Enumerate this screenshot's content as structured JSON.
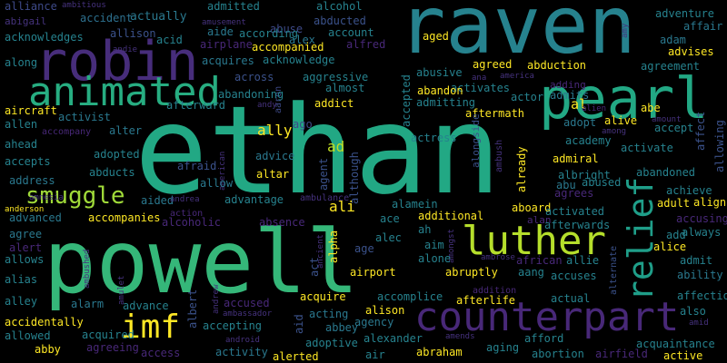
{
  "words": [
    {
      "text": "ethan",
      "color": "#22a884"
    },
    {
      "text": "powell",
      "color": "#35b779"
    },
    {
      "text": "raven",
      "color": "#26828e"
    },
    {
      "text": "robin",
      "color": "#472d7b"
    },
    {
      "text": "pearl",
      "color": "#22a884"
    },
    {
      "text": "animated",
      "color": "#27ad81"
    },
    {
      "text": "counterpart",
      "color": "#482878"
    },
    {
      "text": "luther",
      "color": "#b5de2b"
    },
    {
      "text": "relief",
      "color": "#1f9e89"
    },
    {
      "text": "imf",
      "color": "#fde725"
    },
    {
      "text": "smuggle",
      "color": "#a0da39"
    },
    {
      "text": "alliance",
      "color": "#3e4a89"
    },
    {
      "text": "ambitious",
      "color": "#46327e"
    },
    {
      "text": "accident",
      "color": "#2d708e"
    },
    {
      "text": "abigail",
      "color": "#46337e"
    },
    {
      "text": "admitted",
      "color": "#26828e"
    },
    {
      "text": "amusement",
      "color": "#46327e"
    },
    {
      "text": "alcohol",
      "color": "#26828e"
    },
    {
      "text": "abducted",
      "color": "#3b528b"
    },
    {
      "text": "abuse",
      "color": "#3e4a89"
    },
    {
      "text": "actually",
      "color": "#2a788e"
    },
    {
      "text": "acknowledges",
      "color": "#26828e"
    },
    {
      "text": "allison",
      "color": "#3b528b"
    },
    {
      "text": "andie",
      "color": "#46327e"
    },
    {
      "text": "acid",
      "color": "#26828e"
    },
    {
      "text": "aide",
      "color": "#2a788e"
    },
    {
      "text": "according",
      "color": "#26828e"
    },
    {
      "text": "alex",
      "color": "#2a788e"
    },
    {
      "text": "account",
      "color": "#26828e"
    },
    {
      "text": "alfred",
      "color": "#482878"
    },
    {
      "text": "airplane",
      "color": "#482878"
    },
    {
      "text": "accompanied",
      "color": "#fde725"
    },
    {
      "text": "aged",
      "color": "#fde725"
    },
    {
      "text": "amy",
      "color": "#46327e"
    },
    {
      "text": "adventure",
      "color": "#26828e"
    },
    {
      "text": "affair",
      "color": "#2a788e"
    },
    {
      "text": "adam",
      "color": "#2a788e"
    },
    {
      "text": "advises",
      "color": "#fde725"
    },
    {
      "text": "along",
      "color": "#26828e"
    },
    {
      "text": "acquires",
      "color": "#2a788e"
    },
    {
      "text": "acknowledge",
      "color": "#26828e"
    },
    {
      "text": "across",
      "color": "#3b528b"
    },
    {
      "text": "aggressive",
      "color": "#26828e"
    },
    {
      "text": "abusive",
      "color": "#26828e"
    },
    {
      "text": "agreed",
      "color": "#fde725"
    },
    {
      "text": "abduction",
      "color": "#fde725"
    },
    {
      "text": "agreement",
      "color": "#26828e"
    },
    {
      "text": "ana",
      "color": "#46327e"
    },
    {
      "text": "america",
      "color": "#46327e"
    },
    {
      "text": "activates",
      "color": "#26828e"
    },
    {
      "text": "adding",
      "color": "#482878"
    },
    {
      "text": "abandon",
      "color": "#fde725"
    },
    {
      "text": "actor",
      "color": "#26828e"
    },
    {
      "text": "admits",
      "color": "#2a788e"
    },
    {
      "text": "aaron",
      "color": "#3e4a89"
    },
    {
      "text": "almost",
      "color": "#26828e"
    },
    {
      "text": "abandoning",
      "color": "#26828e"
    },
    {
      "text": "accepted",
      "color": "#26828e"
    },
    {
      "text": "admitting",
      "color": "#26828e"
    },
    {
      "text": "aircraft",
      "color": "#fde725"
    },
    {
      "text": "activist",
      "color": "#2a788e"
    },
    {
      "text": "allen",
      "color": "#26828e"
    },
    {
      "text": "afterward",
      "color": "#26828e"
    },
    {
      "text": "alter",
      "color": "#2a788e"
    },
    {
      "text": "addict",
      "color": "#fde725"
    },
    {
      "text": "andy",
      "color": "#46327e"
    },
    {
      "text": "ago",
      "color": "#3e4a89"
    },
    {
      "text": "aftermath",
      "color": "#fde725"
    },
    {
      "text": "al",
      "color": "#fde725"
    },
    {
      "text": "alien",
      "color": "#482878"
    },
    {
      "text": "abe",
      "color": "#fde725"
    },
    {
      "text": "amount",
      "color": "#46327e"
    },
    {
      "text": "adopt",
      "color": "#2a788e"
    },
    {
      "text": "alive",
      "color": "#fde725"
    },
    {
      "text": "accept",
      "color": "#26828e"
    },
    {
      "text": "affect",
      "color": "#3b528b"
    },
    {
      "text": "allowing",
      "color": "#3b528b"
    },
    {
      "text": "accompany",
      "color": "#482878"
    },
    {
      "text": "ahead",
      "color": "#26828e"
    },
    {
      "text": "among",
      "color": "#46327e"
    },
    {
      "text": "academy",
      "color": "#26828e"
    },
    {
      "text": "activate",
      "color": "#26828e"
    },
    {
      "text": "ally",
      "color": "#fde725"
    },
    {
      "text": "actress",
      "color": "#26828e"
    },
    {
      "text": "alongside",
      "color": "#3b528b"
    },
    {
      "text": "ambush",
      "color": "#46327e"
    },
    {
      "text": "ad",
      "color": "#c2df23"
    },
    {
      "text": "adopted",
      "color": "#26828e"
    },
    {
      "text": "advice",
      "color": "#2a788e"
    },
    {
      "text": "american",
      "color": "#46327e"
    },
    {
      "text": "accepts",
      "color": "#26828e"
    },
    {
      "text": "abducts",
      "color": "#26828e"
    },
    {
      "text": "afraid",
      "color": "#3b528b"
    },
    {
      "text": "altar",
      "color": "#fde725"
    },
    {
      "text": "agent",
      "color": "#3b528b"
    },
    {
      "text": "although",
      "color": "#3b528b"
    },
    {
      "text": "already",
      "color": "#fde725"
    },
    {
      "text": "admiral",
      "color": "#fde725"
    },
    {
      "text": "albright",
      "color": "#26828e"
    },
    {
      "text": "abandoned",
      "color": "#26828e"
    },
    {
      "text": "abu",
      "color": "#2a788e"
    },
    {
      "text": "abused",
      "color": "#26828e"
    },
    {
      "text": "achieve",
      "color": "#26828e"
    },
    {
      "text": "adult",
      "color": "#fde725"
    },
    {
      "text": "align",
      "color": "#fde725"
    },
    {
      "text": "address",
      "color": "#2a788e"
    },
    {
      "text": "amnesia",
      "color": "#46327e"
    },
    {
      "text": "anderson",
      "color": "#fde725"
    },
    {
      "text": "allow",
      "color": "#2a788e"
    },
    {
      "text": "advantage",
      "color": "#26828e"
    },
    {
      "text": "aided",
      "color": "#2a788e"
    },
    {
      "text": "andrea",
      "color": "#46327e"
    },
    {
      "text": "ambulance",
      "color": "#46327e"
    },
    {
      "text": "agrees",
      "color": "#482878"
    },
    {
      "text": "advanced",
      "color": "#2a788e"
    },
    {
      "text": "accompanies",
      "color": "#fde725"
    },
    {
      "text": "action",
      "color": "#482878"
    },
    {
      "text": "alcoholic",
      "color": "#482878"
    },
    {
      "text": "absence",
      "color": "#482878"
    },
    {
      "text": "ali",
      "color": "#fde725"
    },
    {
      "text": "ace",
      "color": "#26828e"
    },
    {
      "text": "alamein",
      "color": "#26828e"
    },
    {
      "text": "additional",
      "color": "#fde725"
    },
    {
      "text": "aboard",
      "color": "#fde725"
    },
    {
      "text": "activated",
      "color": "#26828e"
    },
    {
      "text": "alan",
      "color": "#482878"
    },
    {
      "text": "accusing",
      "color": "#482878"
    },
    {
      "text": "ah",
      "color": "#26828e"
    },
    {
      "text": "alec",
      "color": "#26828e"
    },
    {
      "text": "ancient",
      "color": "#46327e"
    },
    {
      "text": "amongst",
      "color": "#46327e"
    },
    {
      "text": "afterwards",
      "color": "#26828e"
    },
    {
      "text": "always",
      "color": "#26828e"
    },
    {
      "text": "add",
      "color": "#26828e"
    },
    {
      "text": "alice",
      "color": "#fde725"
    },
    {
      "text": "agree",
      "color": "#2a788e"
    },
    {
      "text": "alert",
      "color": "#482878"
    },
    {
      "text": "allows",
      "color": "#26828e"
    },
    {
      "text": "alias",
      "color": "#26828e"
    },
    {
      "text": "act",
      "color": "#3b528b"
    },
    {
      "text": "alpha",
      "color": "#fde725"
    },
    {
      "text": "age",
      "color": "#3b528b"
    },
    {
      "text": "aim",
      "color": "#26828e"
    },
    {
      "text": "alone",
      "color": "#26828e"
    },
    {
      "text": "african",
      "color": "#482878"
    },
    {
      "text": "allie",
      "color": "#26828e"
    },
    {
      "text": "alternate",
      "color": "#3b528b"
    },
    {
      "text": "admit",
      "color": "#26828e"
    },
    {
      "text": "ability",
      "color": "#2a788e"
    },
    {
      "text": "ambrose",
      "color": "#46327e"
    },
    {
      "text": "aang",
      "color": "#26828e"
    },
    {
      "text": "abruptly",
      "color": "#fde725"
    },
    {
      "text": "accuses",
      "color": "#26828e"
    },
    {
      "text": "airport",
      "color": "#fde725"
    },
    {
      "text": "ambushed",
      "color": "#46327e"
    },
    {
      "text": "amulet",
      "color": "#46327e"
    },
    {
      "text": "andrew",
      "color": "#46327e"
    },
    {
      "text": "alley",
      "color": "#26828e"
    },
    {
      "text": "alarm",
      "color": "#2a788e"
    },
    {
      "text": "advance",
      "color": "#26828e"
    },
    {
      "text": "acquire",
      "color": "#fde725"
    },
    {
      "text": "accomplice",
      "color": "#26828e"
    },
    {
      "text": "addition",
      "color": "#482878"
    },
    {
      "text": "afterlife",
      "color": "#fde725"
    },
    {
      "text": "actual",
      "color": "#26828e"
    },
    {
      "text": "affection",
      "color": "#26828e"
    },
    {
      "text": "albert",
      "color": "#3b528b"
    },
    {
      "text": "accused",
      "color": "#482878"
    },
    {
      "text": "ambassador",
      "color": "#46327e"
    },
    {
      "text": "acting",
      "color": "#2a788e"
    },
    {
      "text": "alison",
      "color": "#fde725"
    },
    {
      "text": "abbey",
      "color": "#2a788e"
    },
    {
      "text": "agency",
      "color": "#2a788e"
    },
    {
      "text": "aid",
      "color": "#3b528b"
    },
    {
      "text": "accidentally",
      "color": "#fde725"
    },
    {
      "text": "accepting",
      "color": "#26828e"
    },
    {
      "text": "android",
      "color": "#46327e"
    },
    {
      "text": "adoptive",
      "color": "#26828e"
    },
    {
      "text": "also",
      "color": "#26828e"
    },
    {
      "text": "amid",
      "color": "#46327e"
    },
    {
      "text": "allowed",
      "color": "#26828e"
    },
    {
      "text": "acquired",
      "color": "#26828e"
    },
    {
      "text": "abby",
      "color": "#fde725"
    },
    {
      "text": "agreeing",
      "color": "#482878"
    },
    {
      "text": "alexander",
      "color": "#26828e"
    },
    {
      "text": "amends",
      "color": "#46327e"
    },
    {
      "text": "afford",
      "color": "#26828e"
    },
    {
      "text": "abraham",
      "color": "#fde725"
    },
    {
      "text": "aging",
      "color": "#26828e"
    },
    {
      "text": "abortion",
      "color": "#26828e"
    },
    {
      "text": "airfield",
      "color": "#482878"
    },
    {
      "text": "acquaintance",
      "color": "#26828e"
    },
    {
      "text": "active",
      "color": "#fde725"
    },
    {
      "text": "access",
      "color": "#482878"
    },
    {
      "text": "activity",
      "color": "#2a788e"
    },
    {
      "text": "alerted",
      "color": "#fde725"
    },
    {
      "text": "air",
      "color": "#26828e"
    }
  ]
}
